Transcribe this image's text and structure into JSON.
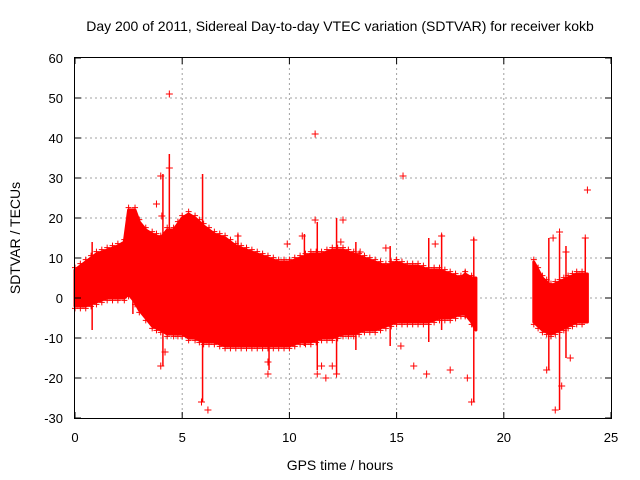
{
  "chart_data": {
    "type": "scatter",
    "title": "Day 200 of 2011, Sidereal Day-to-day VTEC variation (SDTVAR) for receiver kokb",
    "xlabel": "GPS time / hours",
    "ylabel": "SDTVAR / TECUs",
    "xlim": [
      0,
      25
    ],
    "ylim": [
      -30,
      60
    ],
    "xticks": [
      0,
      5,
      10,
      15,
      20,
      25
    ],
    "yticks": [
      -30,
      -20,
      -10,
      0,
      10,
      20,
      30,
      40,
      50,
      60
    ],
    "grid": true,
    "marker": "+",
    "color": "#ff0000",
    "series": [
      {
        "name": "SDTVAR",
        "envelope": {
          "x": [
            0.0,
            0.5,
            1.0,
            1.5,
            2.0,
            2.3,
            2.5,
            2.8,
            3.0,
            3.3,
            3.6,
            4.0,
            4.3,
            4.6,
            5.0,
            5.3,
            5.6,
            6.0,
            6.5,
            7.0,
            7.5,
            8.0,
            8.5,
            9.0,
            9.5,
            10.0,
            10.5,
            11.0,
            11.5,
            12.0,
            12.5,
            13.0,
            13.5,
            14.0,
            14.5,
            15.0,
            15.5,
            16.0,
            16.5,
            17.0,
            17.5,
            18.0,
            18.2,
            18.5,
            18.7
          ],
          "upper": [
            7,
            9,
            11,
            12,
            13,
            14,
            22,
            22,
            19,
            17,
            16,
            15,
            17,
            17,
            20,
            21,
            20,
            18,
            16,
            15,
            13,
            12,
            11,
            10,
            9,
            9,
            10,
            11,
            11,
            12,
            12,
            11,
            10,
            9,
            8,
            9,
            8,
            8,
            7,
            7,
            6,
            5,
            6,
            5,
            5
          ],
          "lower": [
            -2,
            -2,
            -1,
            0,
            0,
            0,
            1,
            -1,
            -3,
            -5,
            -7,
            -8,
            -9,
            -9,
            -9,
            -10,
            -10,
            -11,
            -11,
            -12,
            -12,
            -12,
            -12,
            -12,
            -12,
            -12,
            -11,
            -11,
            -10,
            -10,
            -9,
            -9,
            -8,
            -8,
            -7,
            -6,
            -6,
            -6,
            -6,
            -5,
            -5,
            -4,
            -4,
            -6,
            -8
          ]
        },
        "envelope2": {
          "x": [
            21.4,
            21.8,
            22.2,
            22.6,
            23.0,
            23.4,
            23.9
          ],
          "upper": [
            9,
            5,
            3,
            4,
            5,
            6,
            6
          ],
          "lower": [
            -6,
            -8,
            -9,
            -8,
            -7,
            -6,
            -6
          ]
        },
        "spikes": [
          {
            "x": 0.8,
            "y1": -8,
            "y2": 14
          },
          {
            "x": 2.7,
            "y1": -4,
            "y2": 22
          },
          {
            "x": 4.1,
            "y1": -17,
            "y2": 31
          },
          {
            "x": 4.4,
            "y1": 10,
            "y2": 36
          },
          {
            "x": 5.95,
            "y1": -26,
            "y2": 31
          },
          {
            "x": 7.6,
            "y1": -10,
            "y2": 16
          },
          {
            "x": 9.05,
            "y1": -18,
            "y2": 10
          },
          {
            "x": 10.7,
            "y1": -12,
            "y2": 16
          },
          {
            "x": 11.3,
            "y1": -18,
            "y2": 19
          },
          {
            "x": 12.2,
            "y1": -19,
            "y2": 20
          },
          {
            "x": 13.1,
            "y1": -13,
            "y2": 14
          },
          {
            "x": 14.7,
            "y1": -12,
            "y2": 13
          },
          {
            "x": 16.5,
            "y1": -11,
            "y2": 15
          },
          {
            "x": 17.1,
            "y1": -8,
            "y2": 16
          },
          {
            "x": 18.2,
            "y1": -5,
            "y2": 7
          },
          {
            "x": 18.6,
            "y1": -26,
            "y2": 15
          },
          {
            "x": 22.1,
            "y1": -18,
            "y2": 15
          },
          {
            "x": 22.6,
            "y1": -28,
            "y2": 16
          },
          {
            "x": 22.9,
            "y1": -15,
            "y2": 13
          },
          {
            "x": 23.8,
            "y1": -6,
            "y2": 15
          }
        ],
        "outliers": [
          {
            "x": 4.4,
            "y": 51
          },
          {
            "x": 11.2,
            "y": 41
          },
          {
            "x": 15.3,
            "y": 30.5
          },
          {
            "x": 23.9,
            "y": 27
          },
          {
            "x": 4.0,
            "y": 30.5
          },
          {
            "x": 4.4,
            "y": 32.5
          },
          {
            "x": 3.8,
            "y": 23.5
          },
          {
            "x": 4.05,
            "y": 20.5
          },
          {
            "x": 6.2,
            "y": -28
          },
          {
            "x": 5.9,
            "y": -26
          },
          {
            "x": 4.2,
            "y": -13.5
          },
          {
            "x": 4.0,
            "y": -17
          },
          {
            "x": 8.7,
            "y": -8.5
          },
          {
            "x": 9.0,
            "y": -16
          },
          {
            "x": 9.0,
            "y": -19
          },
          {
            "x": 11.3,
            "y": -19
          },
          {
            "x": 11.5,
            "y": -17
          },
          {
            "x": 11.7,
            "y": -20
          },
          {
            "x": 12.0,
            "y": -17
          },
          {
            "x": 12.2,
            "y": -19
          },
          {
            "x": 12.5,
            "y": 19.5
          },
          {
            "x": 11.2,
            "y": 19.5
          },
          {
            "x": 10.6,
            "y": 15.5
          },
          {
            "x": 12.4,
            "y": 14
          },
          {
            "x": 14.5,
            "y": 12.5
          },
          {
            "x": 15.2,
            "y": -12
          },
          {
            "x": 15.8,
            "y": -17
          },
          {
            "x": 16.4,
            "y": -19
          },
          {
            "x": 17.1,
            "y": 15.5
          },
          {
            "x": 17.5,
            "y": -18
          },
          {
            "x": 18.6,
            "y": 14.5
          },
          {
            "x": 18.5,
            "y": -26
          },
          {
            "x": 18.3,
            "y": -20
          },
          {
            "x": 22.4,
            "y": -28
          },
          {
            "x": 22.7,
            "y": -22
          },
          {
            "x": 23.1,
            "y": -15
          },
          {
            "x": 22.0,
            "y": -18
          },
          {
            "x": 22.3,
            "y": 15
          },
          {
            "x": 22.6,
            "y": 16.5
          },
          {
            "x": 23.8,
            "y": 15
          },
          {
            "x": 22.9,
            "y": 11.5
          },
          {
            "x": 16.8,
            "y": 13.5
          },
          {
            "x": 13.3,
            "y": 11.5
          },
          {
            "x": 7.6,
            "y": 15.5
          },
          {
            "x": 9.9,
            "y": 13.5
          }
        ]
      }
    ]
  }
}
